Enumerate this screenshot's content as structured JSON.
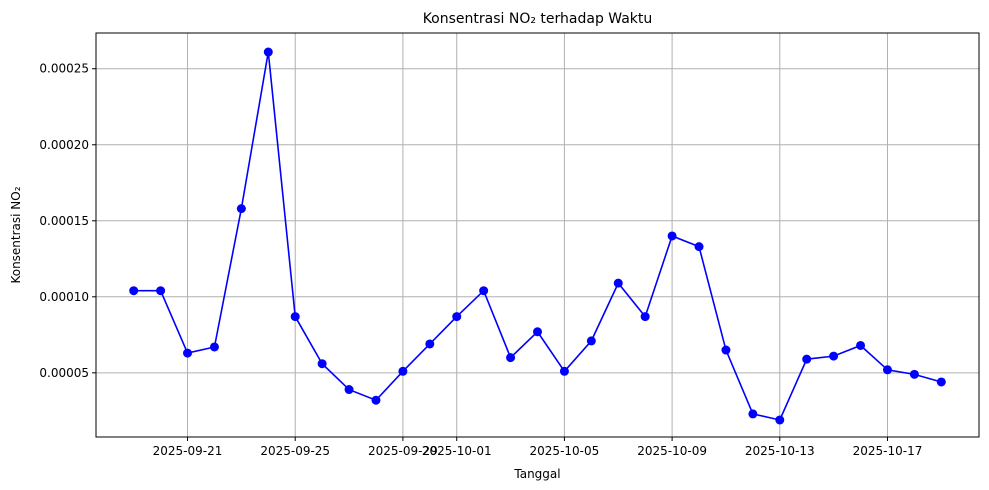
{
  "chart_data": {
    "type": "line",
    "title": "Konsentrasi NO₂ terhadap Waktu",
    "xlabel": "Tanggal",
    "ylabel": "Konsentrasi NO₂",
    "x": [
      "2025-09-19",
      "2025-09-20",
      "2025-09-21",
      "2025-09-22",
      "2025-09-23",
      "2025-09-24",
      "2025-09-25",
      "2025-09-26",
      "2025-09-27",
      "2025-09-28",
      "2025-09-29",
      "2025-09-30",
      "2025-10-01",
      "2025-10-02",
      "2025-10-03",
      "2025-10-04",
      "2025-10-05",
      "2025-10-06",
      "2025-10-07",
      "2025-10-08",
      "2025-10-09",
      "2025-10-10",
      "2025-10-11",
      "2025-10-12",
      "2025-10-13",
      "2025-10-14",
      "2025-10-15",
      "2025-10-16",
      "2025-10-17",
      "2025-10-18",
      "2025-10-19"
    ],
    "values": [
      0.000104,
      0.000104,
      6.3e-05,
      6.7e-05,
      0.000158,
      0.000261,
      8.7e-05,
      5.6e-05,
      3.9e-05,
      3.2e-05,
      5.1e-05,
      6.9e-05,
      8.7e-05,
      0.000104,
      6e-05,
      7.7e-05,
      5.1e-05,
      7.1e-05,
      0.000109,
      8.7e-05,
      0.00014,
      0.000133,
      6.5e-05,
      2.3e-05,
      1.9e-05,
      5.9e-05,
      6.1e-05,
      6.8e-05,
      5.2e-05,
      4.9e-05,
      4.4e-05
    ],
    "xticks": [
      "2025-09-21",
      "2025-09-25",
      "2025-09-29",
      "2025-10-01",
      "2025-10-05",
      "2025-10-09",
      "2025-10-13",
      "2025-10-17"
    ],
    "yticks": [
      "0.00005",
      "0.00010",
      "0.00015",
      "0.00020",
      "0.00025"
    ],
    "xlim": [
      "2025-09-17.6",
      "2025-10-20.4"
    ],
    "ylim": [
      7.8e-06,
      0.0002735
    ],
    "grid": true,
    "line_color": "#0000ff",
    "marker": "circle"
  }
}
